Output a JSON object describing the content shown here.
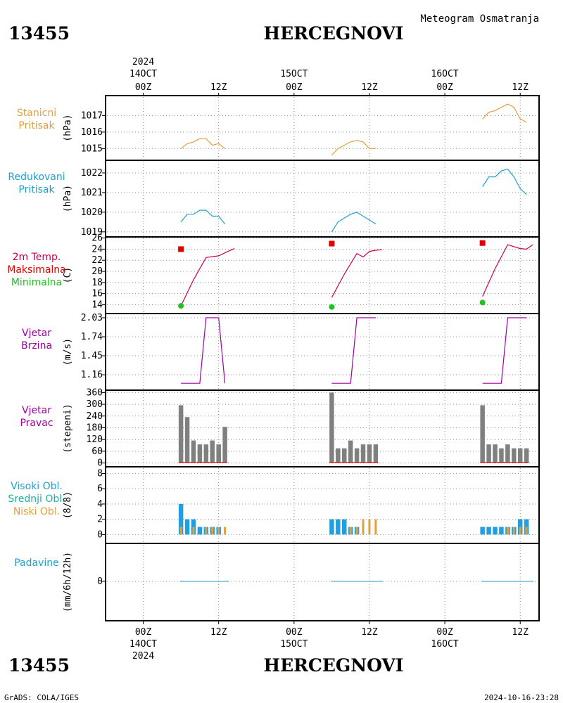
{
  "header": {
    "station_id": "13455",
    "station_name": "HERCEGNOVI",
    "subtitle": "Meteogram Osmatranja"
  },
  "time_axis": {
    "top_labels": [
      {
        "hour": "00Z",
        "day": "14OCT",
        "year": "2024"
      },
      {
        "hour": "12Z"
      },
      {
        "hour": "00Z",
        "day": "15OCT"
      },
      {
        "hour": "12Z"
      },
      {
        "hour": "00Z",
        "day": "16OCT"
      },
      {
        "hour": "12Z"
      }
    ],
    "bottom_labels": [
      {
        "hour": "00Z",
        "day": "14OCT",
        "year": "2024"
      },
      {
        "hour": "12Z"
      },
      {
        "hour": "00Z",
        "day": "15OCT"
      },
      {
        "hour": "12Z"
      },
      {
        "hour": "00Z",
        "day": "16OCT"
      },
      {
        "hour": "12Z"
      }
    ],
    "range_hours": [
      -6,
      63
    ]
  },
  "footer": {
    "left": "GrADS: COLA/IGES",
    "right": "2024-10-16-23:28"
  },
  "colors": {
    "pressure_station": "#e0a040",
    "pressure_reduced": "#20a0c8",
    "temp": "#c8005a",
    "tmax": "#e00000",
    "tmin": "#20c020",
    "wind": "#a000a0",
    "dir_bar": "#808080",
    "cloud_high": "#20a0e0",
    "cloud_low": "#e0a040",
    "precip": "#20a0c8",
    "grid": "#909090"
  },
  "chart_data": [
    {
      "type": "line",
      "panel": "station_pressure",
      "labels": [
        "Stanicni",
        "Pritisak"
      ],
      "ylabel": "(hPa)",
      "ylim": [
        1014.5,
        1018.0
      ],
      "yticks": [
        1015,
        1016,
        1017
      ],
      "series": [
        {
          "x": [
            6,
            7,
            8,
            9,
            10,
            11,
            12,
            13
          ],
          "values": [
            1015.0,
            1015.3,
            1015.4,
            1015.6,
            1015.6,
            1015.2,
            1015.3,
            1015.0
          ]
        },
        {
          "x": [
            30,
            31,
            32,
            33,
            34,
            35,
            36,
            37
          ],
          "values": [
            1014.6,
            1015.0,
            1015.2,
            1015.4,
            1015.5,
            1015.4,
            1015.0,
            1015.0
          ]
        },
        {
          "x": [
            54,
            55,
            56,
            57,
            58,
            59,
            60,
            61
          ],
          "values": [
            1016.8,
            1017.2,
            1017.3,
            1017.5,
            1017.7,
            1017.5,
            1016.8,
            1016.6
          ]
        }
      ]
    },
    {
      "type": "line",
      "panel": "reduced_pressure",
      "labels": [
        "Redukovani",
        "Pritisak"
      ],
      "ylabel": "(hPa)",
      "ylim": [
        1018.85,
        1022.5
      ],
      "yticks": [
        1019,
        1020,
        1021,
        1022
      ],
      "series": [
        {
          "x": [
            6,
            7,
            8,
            9,
            10,
            11,
            12,
            13
          ],
          "values": [
            1019.5,
            1019.9,
            1019.9,
            1020.1,
            1020.1,
            1019.8,
            1019.8,
            1019.4
          ]
        },
        {
          "x": [
            30,
            31,
            32,
            33,
            34,
            35,
            36,
            37
          ],
          "values": [
            1019.0,
            1019.5,
            1019.7,
            1019.9,
            1020.0,
            1019.8,
            1019.6,
            1019.4
          ]
        },
        {
          "x": [
            54,
            55,
            56,
            57,
            58,
            59,
            60,
            61
          ],
          "values": [
            1021.3,
            1021.8,
            1021.8,
            1022.1,
            1022.2,
            1021.8,
            1021.2,
            1020.9
          ]
        }
      ]
    },
    {
      "type": "line",
      "panel": "temperature",
      "labels": [
        "2m Temp.",
        "Maksimalna",
        "Minimalna"
      ],
      "ylabel": "(C)",
      "ylim": [
        12.8,
        26.2
      ],
      "yticks": [
        14,
        16,
        18,
        20,
        22,
        24,
        26
      ],
      "series": [
        {
          "x": [
            6,
            8,
            10,
            12,
            13.5,
            14.5
          ],
          "values": [
            13.8,
            18.5,
            22.5,
            22.8,
            23.6,
            24.1
          ]
        },
        {
          "x": [
            30,
            32,
            34,
            35,
            36,
            37,
            38
          ],
          "values": [
            15.3,
            19.5,
            23.2,
            22.6,
            23.6,
            23.8,
            23.9
          ]
        },
        {
          "x": [
            54,
            56,
            58,
            60,
            61,
            62
          ],
          "values": [
            15.5,
            20.5,
            24.8,
            24.1,
            24.0,
            24.8
          ]
        }
      ],
      "tmax": {
        "x": [
          6,
          30,
          54
        ],
        "values": [
          24.0,
          25.0,
          25.1
        ]
      },
      "tmin": {
        "x": [
          6,
          30,
          54
        ],
        "values": [
          13.8,
          13.6,
          14.4
        ]
      }
    },
    {
      "type": "line",
      "panel": "wind_speed",
      "labels": [
        "Vjetar",
        "Brzina"
      ],
      "ylabel": "(m/s)",
      "ylim": [
        1.0,
        2.03
      ],
      "yticks": [
        1.16,
        1.45,
        1.74,
        2.03
      ],
      "ytick_labels": [
        "1.16",
        "1.45",
        "1.74",
        "2.03"
      ],
      "series": [
        {
          "x": [
            6,
            9,
            10,
            12,
            13
          ],
          "values": [
            1.03,
            1.03,
            2.03,
            2.03,
            1.03
          ]
        },
        {
          "x": [
            30,
            33,
            34,
            37
          ],
          "values": [
            1.03,
            1.03,
            2.03,
            2.03
          ]
        },
        {
          "x": [
            54,
            57,
            58,
            61
          ],
          "values": [
            1.03,
            1.03,
            2.03,
            2.03
          ]
        }
      ]
    },
    {
      "type": "bar",
      "panel": "wind_direction",
      "labels": [
        "Vjetar",
        "Pravac"
      ],
      "ylabel": "(stepeni)",
      "ylim": [
        -5,
        365
      ],
      "yticks": [
        0,
        60,
        120,
        180,
        240,
        300,
        360
      ],
      "series": [
        {
          "x": [
            6,
            7,
            8,
            9,
            10,
            11,
            12,
            13
          ],
          "values": [
            295,
            235,
            115,
            95,
            95,
            115,
            95,
            185
          ]
        },
        {
          "x": [
            30,
            31,
            32,
            33,
            34,
            35,
            36,
            37
          ],
          "values": [
            360,
            75,
            75,
            115,
            75,
            95,
            95,
            95
          ]
        },
        {
          "x": [
            54,
            55,
            56,
            57,
            58,
            59,
            60,
            61
          ],
          "values": [
            295,
            95,
            95,
            75,
            95,
            75,
            75,
            75
          ]
        }
      ]
    },
    {
      "type": "bar",
      "panel": "clouds",
      "labels": [
        "Visoki Obl.",
        "Srednji Obl.",
        "Niski Obl."
      ],
      "ylabel": "(8/8)",
      "ylim": [
        -0.7,
        8.5
      ],
      "yticks": [
        0,
        2,
        4,
        6,
        8
      ],
      "series": [
        {
          "name": "Visoki Obl.",
          "x": [
            6,
            7,
            8,
            9,
            10,
            11,
            12,
            13
          ],
          "values": [
            4,
            2,
            2,
            1,
            1,
            1,
            1,
            0
          ]
        },
        {
          "name": "Niski Obl.",
          "x": [
            6,
            7,
            8,
            9,
            10,
            11,
            12,
            13
          ],
          "values": [
            1,
            0,
            1,
            0,
            1,
            1,
            1,
            1
          ]
        },
        {
          "name": "Visoki Obl.",
          "x": [
            30,
            31,
            32,
            33,
            34,
            35,
            36,
            37
          ],
          "values": [
            2,
            2,
            2,
            1,
            1,
            0,
            0,
            0
          ]
        },
        {
          "name": "Niski Obl.",
          "x": [
            30,
            31,
            32,
            33,
            34,
            35,
            36,
            37
          ],
          "values": [
            0,
            0,
            0,
            1,
            1,
            2,
            2,
            2
          ]
        },
        {
          "name": "Visoki Obl.",
          "x": [
            54,
            55,
            56,
            57,
            58,
            59,
            60,
            61
          ],
          "values": [
            1,
            1,
            1,
            1,
            1,
            1,
            2,
            2
          ]
        },
        {
          "name": "Niski Obl.",
          "x": [
            54,
            55,
            56,
            57,
            58,
            59,
            60,
            61
          ],
          "values": [
            0,
            0,
            0,
            0,
            1,
            1,
            1,
            1
          ]
        }
      ]
    },
    {
      "type": "line",
      "panel": "precipitation",
      "labels": [
        "Padavine"
      ],
      "ylabel": "(mm/6h/12h)",
      "ylim": [
        -1,
        1
      ],
      "yticks": [
        0
      ],
      "series": [
        {
          "x": [
            6,
            13.5
          ],
          "values": [
            0,
            0
          ]
        },
        {
          "x": [
            30,
            38
          ],
          "values": [
            0,
            0
          ]
        },
        {
          "x": [
            54,
            62
          ],
          "values": [
            0,
            0
          ]
        }
      ]
    }
  ]
}
